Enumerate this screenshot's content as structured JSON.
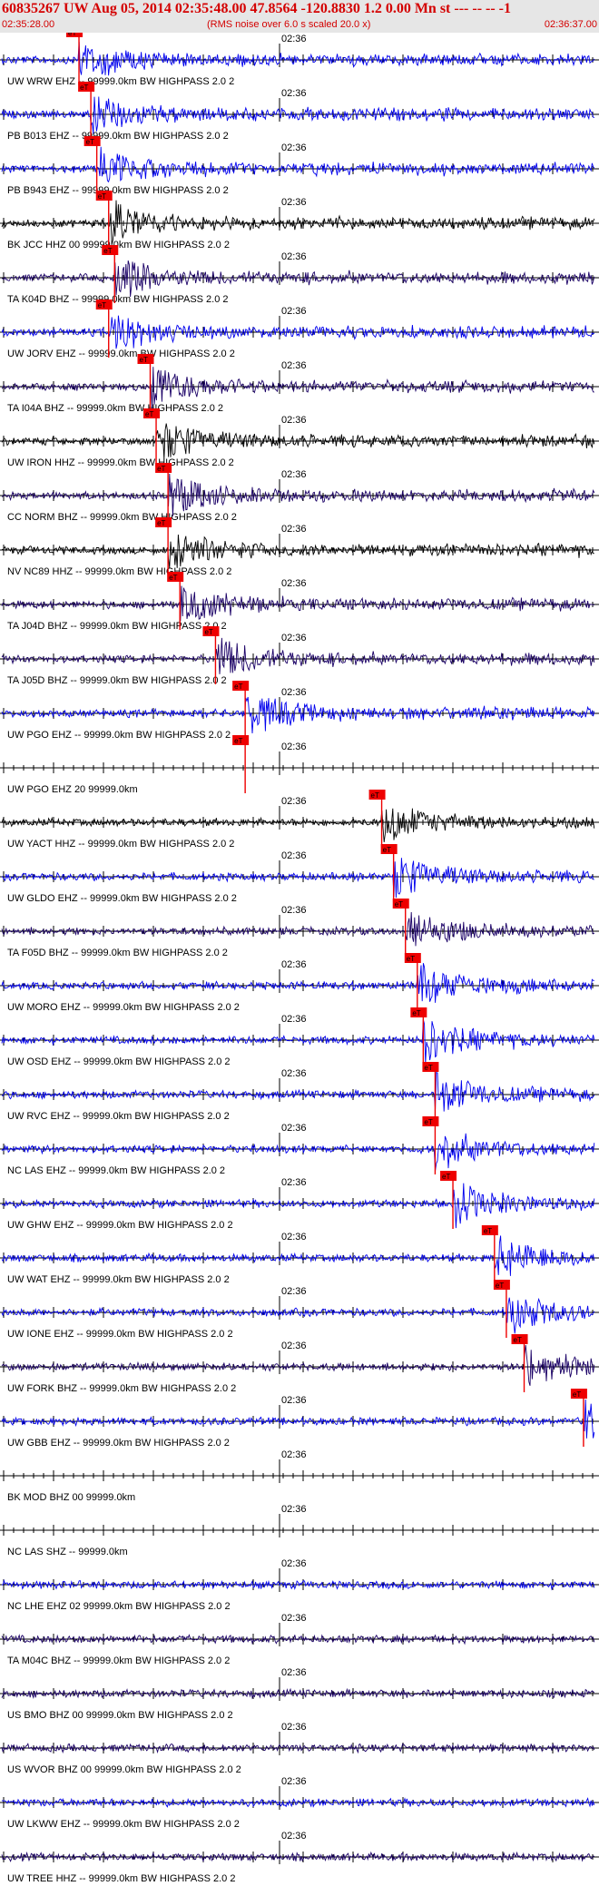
{
  "header": {
    "title": "60835267 UW Aug 05, 2014 02:35:48.00   47.8564 -120.8830  1.2 0.00 Mn st --- -- --   -1",
    "time_start": "02:35:28.00",
    "noise_note": "(RMS noise over 6.0 s scaled 20.0 x)",
    "time_end": "02:36:37.00"
  },
  "minute_label": "02:36",
  "pick_label": "eT",
  "colors": {
    "blue": "#0000ee",
    "navy": "#1a0066",
    "black": "#000000",
    "pick": "#ee0000",
    "header_bg": "#e6e6e6",
    "header_text": "#d40000"
  },
  "traces": [
    {
      "label": "UW WRW EHZ -- 99999.0km BW  HIGHPASS  2.0  2",
      "color": "blue",
      "pick": 0.13,
      "trace": true
    },
    {
      "label": "PB B013 EHZ -- 99999.0km BW  HIGHPASS  2.0  2",
      "color": "blue",
      "pick": 0.15,
      "trace": true
    },
    {
      "label": "PB B943 EHZ -- 99999.0km BW  HIGHPASS  2.0  2",
      "color": "blue",
      "pick": 0.16,
      "trace": true
    },
    {
      "label": "BK JCC HHZ 00 99999.0km BW  HIGHPASS  2.0  2",
      "color": "black",
      "pick": 0.18,
      "trace": true
    },
    {
      "label": "TA K04D BHZ -- 99999.0km BW  HIGHPASS  2.0  2",
      "color": "navy",
      "pick": 0.19,
      "trace": true
    },
    {
      "label": "UW JORV EHZ -- 99999.0km BW  HIGHPASS  2.0  2",
      "color": "blue",
      "pick": 0.18,
      "trace": true
    },
    {
      "label": "TA I04A BHZ -- 99999.0km BW  HIGHPASS  2.0  2",
      "color": "navy",
      "pick": 0.25,
      "trace": true
    },
    {
      "label": "UW IRON HHZ -- 99999.0km BW  HIGHPASS  2.0  2",
      "color": "black",
      "pick": 0.26,
      "trace": true
    },
    {
      "label": "CC NORM BHZ -- 99999.0km BW  HIGHPASS  2.0  2",
      "color": "navy",
      "pick": 0.28,
      "trace": true
    },
    {
      "label": "NV NC89 HHZ -- 99999.0km BW  HIGHPASS  2.0  2",
      "color": "black",
      "pick": 0.28,
      "trace": true
    },
    {
      "label": "TA J04D BHZ -- 99999.0km BW  HIGHPASS  2.0  2",
      "color": "navy",
      "pick": 0.3,
      "trace": true
    },
    {
      "label": "TA J05D BHZ -- 99999.0km BW  HIGHPASS  2.0  2",
      "color": "navy",
      "pick": 0.36,
      "trace": true
    },
    {
      "label": "UW PGO EHZ -- 99999.0km BW  HIGHPASS  2.0  2",
      "color": "blue",
      "pick": 0.41,
      "trace": true
    },
    {
      "label": "UW PGO EHZ 20 99999.0km",
      "color": "blue",
      "pick": 0.41,
      "trace": false
    },
    {
      "label": "UW YACT HHZ -- 99999.0km BW  HIGHPASS  2.0  2",
      "color": "black",
      "pick": 0.64,
      "trace": true
    },
    {
      "label": "UW GLDO EHZ -- 99999.0km BW  HIGHPASS  2.0  2",
      "color": "blue",
      "pick": 0.66,
      "trace": true
    },
    {
      "label": "TA F05D BHZ -- 99999.0km BW  HIGHPASS  2.0  2",
      "color": "navy",
      "pick": 0.68,
      "trace": true
    },
    {
      "label": "UW MORO EHZ -- 99999.0km BW  HIGHPASS  2.0  2",
      "color": "blue",
      "pick": 0.7,
      "trace": true
    },
    {
      "label": "UW OSD EHZ -- 99999.0km BW  HIGHPASS  2.0  2",
      "color": "blue",
      "pick": 0.71,
      "trace": true
    },
    {
      "label": "UW RVC EHZ -- 99999.0km BW  HIGHPASS  2.0  2",
      "color": "blue",
      "pick": 0.73,
      "trace": true
    },
    {
      "label": "NC LAS EHZ -- 99999.0km BW  HIGHPASS  2.0  2",
      "color": "blue",
      "pick": 0.73,
      "trace": true
    },
    {
      "label": "UW GHW EHZ -- 99999.0km BW  HIGHPASS  2.0  2",
      "color": "blue",
      "pick": 0.76,
      "trace": true
    },
    {
      "label": "UW WAT EHZ -- 99999.0km BW  HIGHPASS  2.0  2",
      "color": "blue",
      "pick": 0.83,
      "trace": true
    },
    {
      "label": "UW IONE EHZ -- 99999.0km BW  HIGHPASS  2.0  2",
      "color": "blue",
      "pick": 0.85,
      "trace": true
    },
    {
      "label": "UW FORK BHZ -- 99999.0km BW  HIGHPASS  2.0  2",
      "color": "navy",
      "pick": 0.88,
      "trace": true
    },
    {
      "label": "UW GBB EHZ -- 99999.0km BW  HIGHPASS  2.0  2",
      "color": "blue",
      "pick": 0.98,
      "trace": true
    },
    {
      "label": "BK MOD BHZ 00 99999.0km",
      "color": "blue",
      "pick": null,
      "trace": false
    },
    {
      "label": "NC LAS SHZ -- 99999.0km",
      "color": "blue",
      "pick": null,
      "trace": false
    },
    {
      "label": "NC LHE EHZ 02 99999.0km BW  HIGHPASS  2.0  2",
      "color": "blue",
      "pick": null,
      "trace": true
    },
    {
      "label": "TA M04C BHZ -- 99999.0km BW  HIGHPASS  2.0  2",
      "color": "navy",
      "pick": null,
      "trace": true
    },
    {
      "label": "US BMO BHZ 00 99999.0km BW  HIGHPASS  2.0  2",
      "color": "navy",
      "pick": null,
      "trace": true
    },
    {
      "label": "US WVOR BHZ 00 99999.0km BW  HIGHPASS  2.0  2",
      "color": "navy",
      "pick": null,
      "trace": true
    },
    {
      "label": "UW LKWW EHZ -- 99999.0km BW  HIGHPASS  2.0  2",
      "color": "blue",
      "pick": null,
      "trace": true
    },
    {
      "label": "UW TREE HHZ -- 99999.0km BW  HIGHPASS  2.0  2",
      "color": "navy",
      "pick": null,
      "trace": true
    }
  ]
}
